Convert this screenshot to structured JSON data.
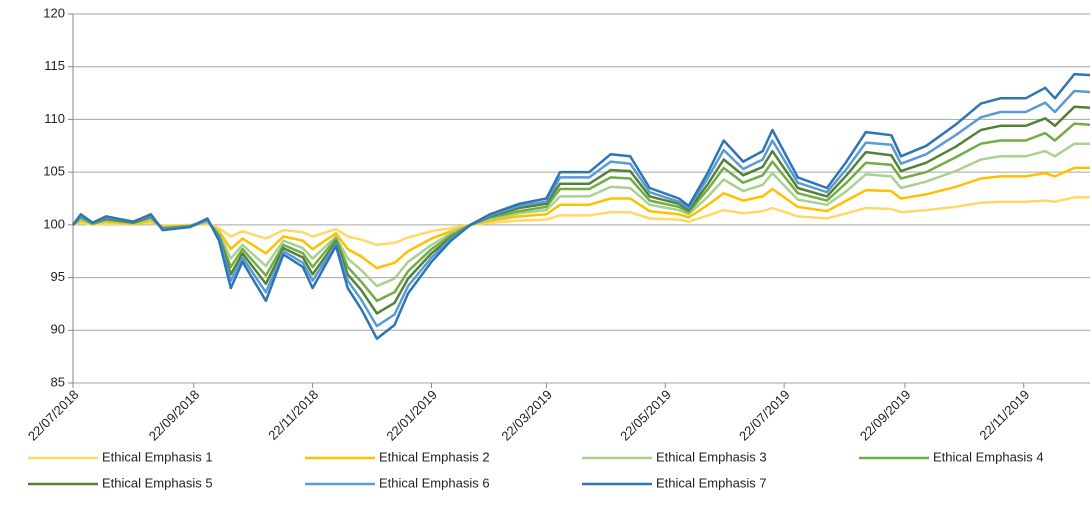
{
  "chart_data": {
    "type": "line",
    "x": [
      "22/07/2018",
      "26/07/2018",
      "01/08/2018",
      "08/08/2018",
      "22/08/2018",
      "31/08/2018",
      "06/09/2018",
      "20/09/2018",
      "29/09/2018",
      "05/10/2018",
      "11/10/2018",
      "17/10/2018",
      "29/10/2018",
      "07/11/2018",
      "17/11/2018",
      "22/11/2018",
      "04/12/2018",
      "10/12/2018",
      "17/12/2018",
      "25/12/2018",
      "03/01/2019",
      "10/01/2019",
      "22/01/2019",
      "01/02/2019",
      "11/02/2019",
      "21/02/2019",
      "08/03/2019",
      "22/03/2019",
      "29/03/2019",
      "13/04/2019",
      "24/04/2019",
      "04/05/2019",
      "14/05/2019",
      "29/05/2019",
      "03/06/2019",
      "13/06/2019",
      "21/06/2019",
      "01/07/2019",
      "11/07/2019",
      "16/07/2019",
      "29/07/2019",
      "13/08/2019",
      "23/08/2019",
      "02/09/2019",
      "15/09/2019",
      "20/09/2019",
      "03/10/2019",
      "18/10/2019",
      "31/10/2019",
      "10/11/2019",
      "23/11/2019",
      "03/12/2019",
      "08/12/2019",
      "18/12/2019",
      "26/12/2019"
    ],
    "series": [
      {
        "name": "Ethical Emphasis 1",
        "color": "#ffd966",
        "values": [
          100,
          100.2,
          100,
          100.1,
          100.1,
          100.2,
          99.9,
          100,
          100.1,
          99.7,
          98.9,
          99.4,
          98.7,
          99.5,
          99.3,
          98.9,
          99.6,
          98.9,
          98.6,
          98.1,
          98.3,
          98.8,
          99.4,
          99.7,
          100,
          100.2,
          100.4,
          100.5,
          100.9,
          100.9,
          101.2,
          101.2,
          100.6,
          100.5,
          100.3,
          100.9,
          101.4,
          101.1,
          101.3,
          101.6,
          100.8,
          100.6,
          101.1,
          101.6,
          101.5,
          101.2,
          101.4,
          101.7,
          102.1,
          102.2,
          102.2,
          102.3,
          102.2,
          102.6,
          102.6
        ]
      },
      {
        "name": "Ethical Emphasis 2",
        "color": "#ffc000",
        "values": [
          100,
          100.4,
          100.1,
          100.3,
          100.1,
          100.4,
          99.8,
          99.9,
          100.2,
          99.4,
          97.7,
          98.7,
          97.3,
          98.9,
          98.5,
          97.7,
          99.2,
          97.7,
          97,
          95.9,
          96.4,
          97.5,
          98.7,
          99.4,
          100,
          100.4,
          100.8,
          101,
          101.9,
          101.9,
          102.5,
          102.5,
          101.3,
          101,
          100.7,
          101.9,
          103,
          102.3,
          102.7,
          103.4,
          101.7,
          101.3,
          102.3,
          103.3,
          103.2,
          102.5,
          102.9,
          103.6,
          104.4,
          104.6,
          104.6,
          104.9,
          104.6,
          105.4,
          105.4
        ]
      },
      {
        "name": "Ethical Emphasis 3",
        "color": "#a9d18e",
        "values": [
          100,
          100.5,
          100.1,
          100.4,
          100.2,
          100.5,
          99.7,
          99.9,
          100.3,
          99.2,
          96.8,
          98.1,
          96.1,
          98.5,
          97.8,
          96.8,
          98.9,
          96.8,
          95.7,
          94.2,
          94.9,
          96.5,
          98.1,
          99.2,
          100,
          100.5,
          101.1,
          101.4,
          102.7,
          102.7,
          103.6,
          103.5,
          101.9,
          101.4,
          101,
          102.7,
          104.3,
          103.2,
          103.8,
          104.9,
          102.4,
          101.9,
          103.2,
          104.8,
          104.6,
          103.5,
          104.1,
          105.1,
          106.2,
          106.5,
          106.5,
          107,
          106.5,
          107.7,
          107.7
        ]
      },
      {
        "name": "Ethical Emphasis 4",
        "color": "#70ad47",
        "values": [
          100,
          100.7,
          100.1,
          100.5,
          100.2,
          100.7,
          99.7,
          99.9,
          100.4,
          99,
          96,
          97.7,
          95.2,
          98.1,
          97.3,
          96,
          98.7,
          96,
          94.6,
          92.8,
          93.6,
          95.6,
          97.7,
          99,
          100,
          100.7,
          101.3,
          101.7,
          103.4,
          103.4,
          104.5,
          104.4,
          102.3,
          101.7,
          101.2,
          103.4,
          105.4,
          104,
          104.7,
          106,
          103,
          102.3,
          104,
          105.9,
          105.7,
          104.4,
          105,
          106.4,
          107.7,
          108,
          108,
          108.7,
          108,
          109.6,
          109.5
        ]
      },
      {
        "name": "Ethical Emphasis 5",
        "color": "#548235",
        "values": [
          100,
          100.8,
          100.2,
          100.6,
          100.2,
          100.8,
          99.6,
          99.8,
          100.5,
          98.8,
          95.3,
          97.3,
          94.4,
          97.8,
          96.9,
          95.3,
          98.4,
          95.3,
          93.8,
          91.6,
          92.6,
          94.9,
          97.3,
          98.8,
          100,
          100.8,
          101.6,
          102,
          103.9,
          103.9,
          105.2,
          105.1,
          102.7,
          102,
          101.4,
          103.9,
          106.2,
          104.7,
          105.5,
          107,
          103.5,
          102.7,
          104.7,
          106.9,
          106.6,
          105.1,
          105.9,
          107.4,
          109,
          109.4,
          109.4,
          110.1,
          109.4,
          111.2,
          111.1
        ]
      },
      {
        "name": "Ethical Emphasis 6",
        "color": "#5b9bd5",
        "values": [
          100,
          100.9,
          100.2,
          100.7,
          100.3,
          100.9,
          99.6,
          99.8,
          100.5,
          98.7,
          94.7,
          96.9,
          93.6,
          97.5,
          96.4,
          94.7,
          98.2,
          94.7,
          92.9,
          90.4,
          91.5,
          94.2,
          96.9,
          98.7,
          100,
          100.9,
          101.8,
          102.2,
          104.5,
          104.5,
          106,
          105.8,
          103.1,
          102.2,
          101.6,
          104.5,
          107.1,
          105.3,
          106.2,
          108,
          104,
          103.1,
          105.3,
          107.8,
          107.6,
          105.8,
          106.7,
          108.5,
          110.2,
          110.7,
          110.7,
          111.6,
          110.7,
          112.7,
          112.6
        ]
      },
      {
        "name": "Ethical Emphasis 7",
        "color": "#2e75b6",
        "values": [
          100,
          101,
          100.2,
          100.8,
          100.3,
          101,
          99.5,
          99.8,
          100.6,
          98.5,
          94,
          96.5,
          92.8,
          97.2,
          96,
          94,
          98,
          94,
          92,
          89.2,
          90.5,
          93.5,
          96.5,
          98.5,
          100,
          101,
          102,
          102.5,
          105,
          105,
          106.7,
          106.5,
          103.5,
          102.5,
          101.8,
          105,
          108,
          106,
          107,
          109,
          104.5,
          103.5,
          106,
          108.8,
          108.5,
          106.5,
          107.5,
          109.5,
          111.5,
          112,
          112,
          113,
          112,
          114.3,
          114.2
        ]
      }
    ],
    "xlim": [
      "22/07/2018",
      "26/12/2019"
    ],
    "xticks": [
      "22/07/2018",
      "22/09/2018",
      "22/11/2018",
      "22/01/2019",
      "22/03/2019",
      "22/05/2019",
      "22/07/2019",
      "22/09/2019",
      "22/11/2019"
    ],
    "ylim": [
      85,
      120
    ],
    "yticks": [
      85,
      90,
      95,
      100,
      105,
      110,
      115,
      120
    ],
    "grid": true,
    "legend": "bottom"
  }
}
